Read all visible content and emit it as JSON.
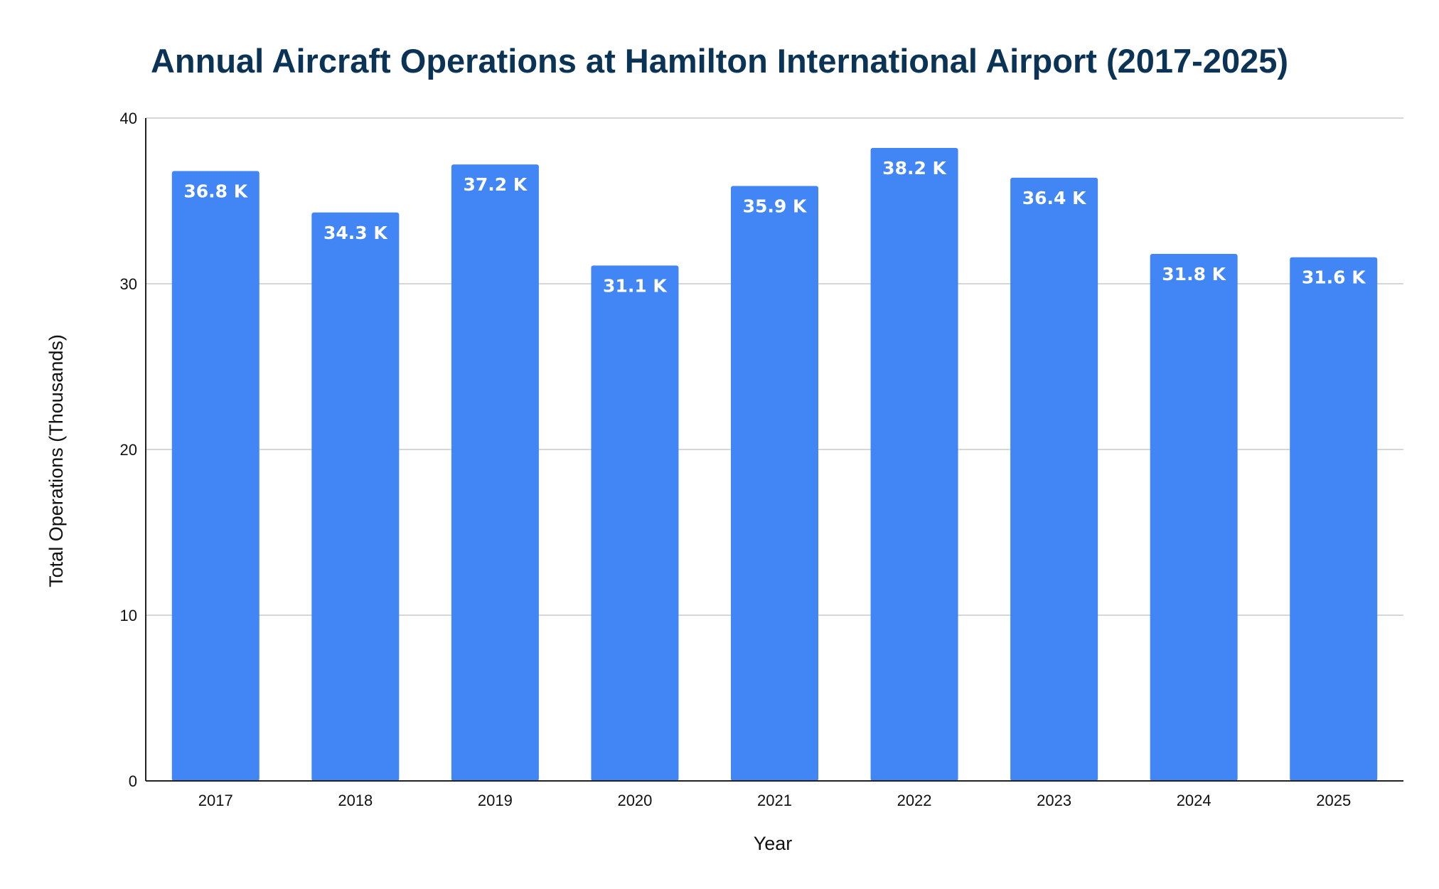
{
  "chart_data": {
    "type": "bar",
    "title": "Annual Aircraft Operations at Hamilton International Airport (2017-2025)",
    "xlabel": "Year",
    "ylabel": "Total Operations (Thousands)",
    "categories": [
      "2017",
      "2018",
      "2019",
      "2020",
      "2021",
      "2022",
      "2023",
      "2024",
      "2025"
    ],
    "series": [
      {
        "values": [
          36.8,
          34.3,
          37.2,
          31.1,
          35.9,
          38.2,
          36.4,
          31.8,
          31.6
        ],
        "labels": [
          "36.8 K",
          "34.3 K",
          "37.2 K",
          "31.1 K",
          "35.9 K",
          "38.2 K",
          "36.4 K",
          "31.8 K",
          "31.6 K"
        ],
        "color": "#4285f4"
      }
    ],
    "ylim": [
      0,
      40
    ],
    "yticks": [
      "0",
      "10",
      "20",
      "30",
      "40"
    ],
    "grid": true,
    "legend": "none"
  }
}
